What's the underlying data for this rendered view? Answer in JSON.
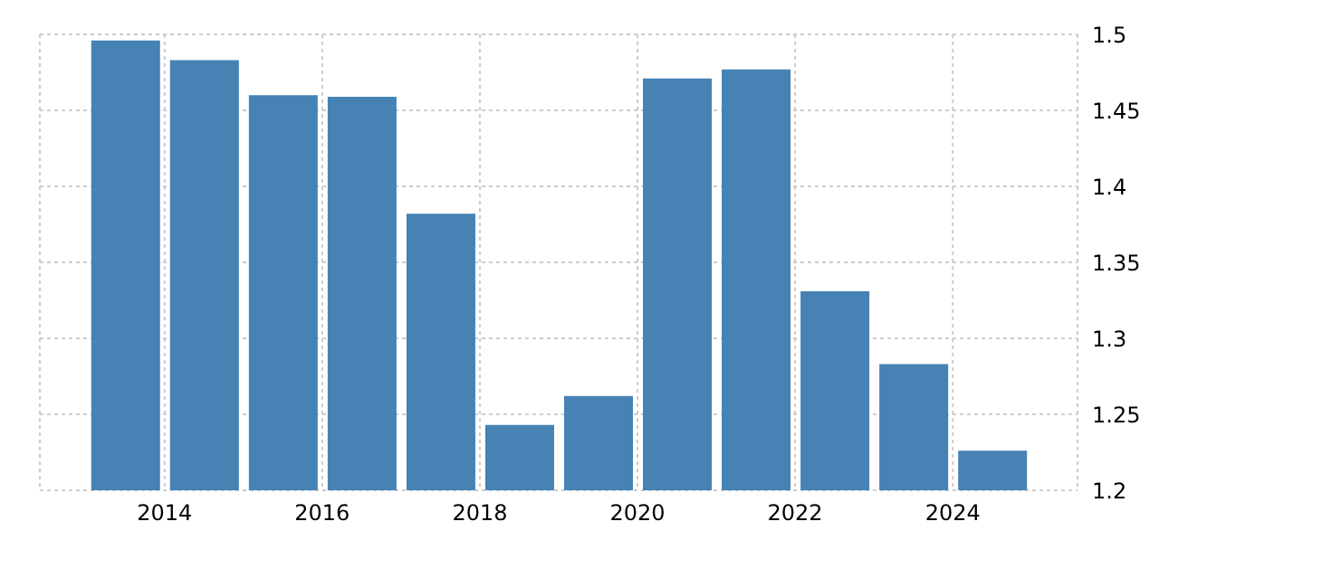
{
  "chart_data": {
    "type": "bar",
    "x": [
      "2013-07",
      "2014-07",
      "2015-07",
      "2016-07",
      "2017-07",
      "2018-07",
      "2019-07",
      "2020-07",
      "2021-07",
      "2022-07",
      "2023-07",
      "2024-07"
    ],
    "values": [
      1.496,
      1.483,
      1.46,
      1.459,
      1.382,
      1.243,
      1.262,
      1.471,
      1.477,
      1.331,
      1.283,
      1.226
    ],
    "color": "#4682b4",
    "xlim": [
      "2012-06",
      "2025-08"
    ],
    "xticks": [
      "2014",
      "2016",
      "2018",
      "2020",
      "2022",
      "2024"
    ],
    "ylim": [
      1.2,
      1.5
    ],
    "yticks": [
      1.2,
      1.25,
      1.3,
      1.35,
      1.4,
      1.45,
      1.5
    ],
    "grid": true,
    "legend": false
  }
}
